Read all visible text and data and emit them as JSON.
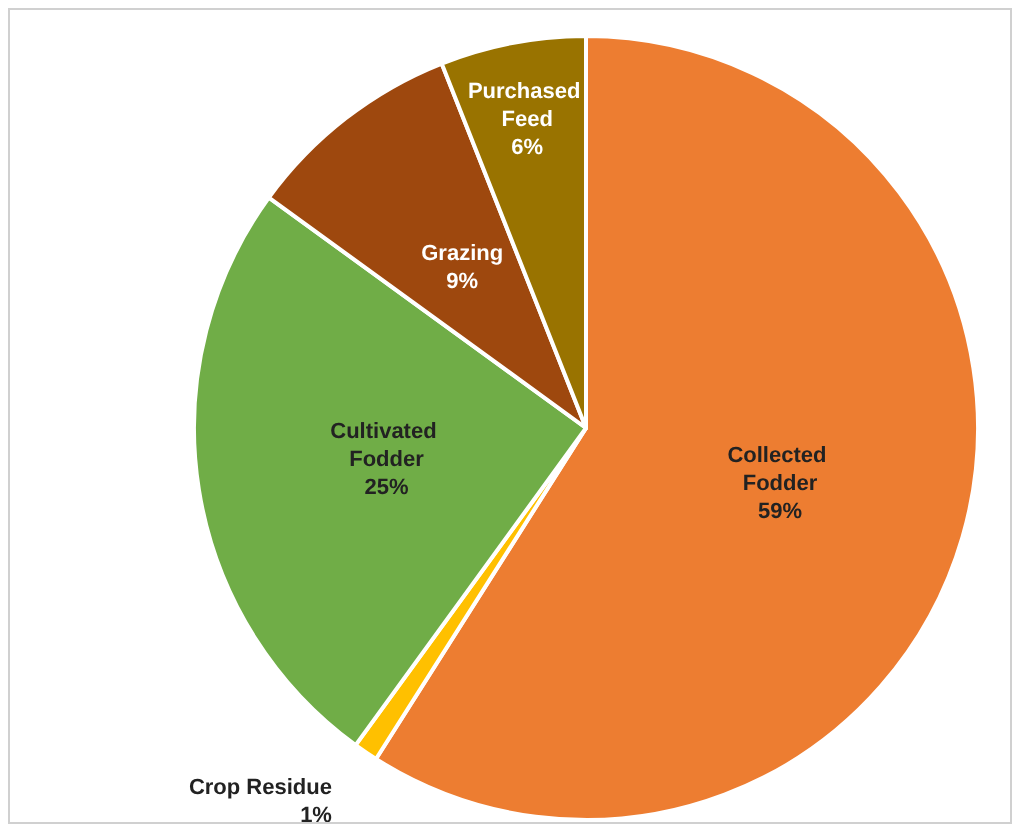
{
  "chart_data": {
    "type": "pie",
    "categories": [
      "Collected Fodder",
      "Crop Residue",
      "Cultivated Fodder",
      "Grazing",
      "Purchased Feed"
    ],
    "values": [
      59,
      1,
      25,
      9,
      6
    ],
    "colors": [
      "#ed7d31",
      "#ffc000",
      "#70ad47",
      "#9e480e",
      "#997300"
    ],
    "value_labels": [
      "59%",
      "1%",
      "25%",
      "9%",
      "6%"
    ],
    "legend": false
  }
}
